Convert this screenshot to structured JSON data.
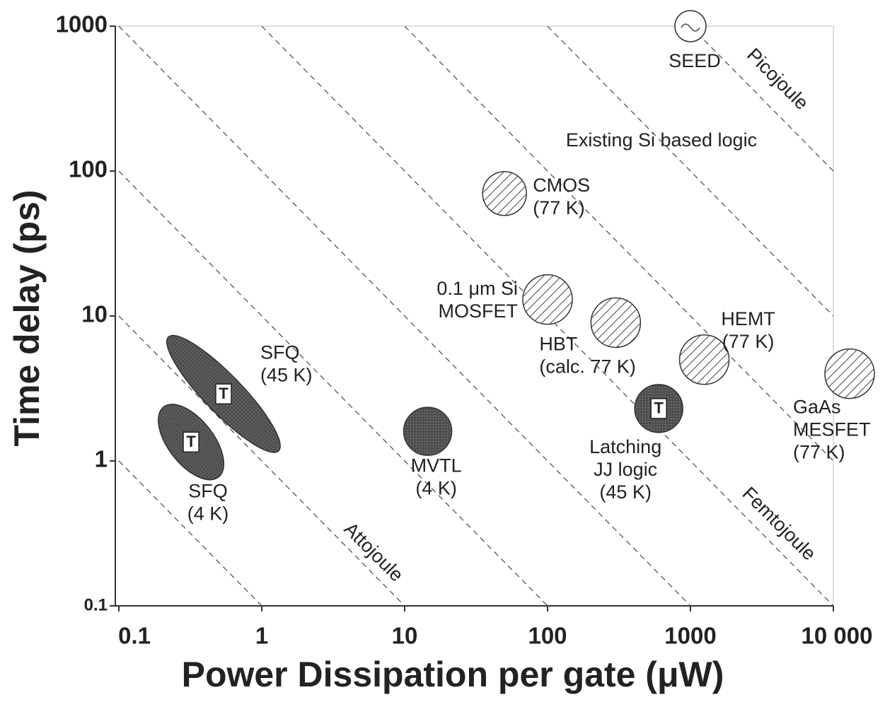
{
  "chart_data": {
    "type": "scatter",
    "xlabel": "Power Dissipation per gate (μW)",
    "ylabel": "Time delay (ps)",
    "log_x": true,
    "log_y": true,
    "xlim": [
      0.1,
      10000
    ],
    "ylim": [
      0.1,
      1000
    ],
    "xticks": [
      0.1,
      1,
      10,
      100,
      1000,
      {
        "value": 10000,
        "label": "10 000"
      }
    ],
    "yticks": [
      0.1,
      1,
      10,
      100,
      1000
    ],
    "annotation": "Existing Si based logic",
    "energy_lines": [
      0.01,
      0.1,
      1,
      10,
      100,
      1000,
      10000,
      100000,
      1000000
    ],
    "energy_labels": [
      {
        "value": 1,
        "label": "Attojoule"
      },
      {
        "value": 1000,
        "label": "Femtojoule"
      },
      {
        "value": 1000000,
        "label": "Picojoule"
      }
    ],
    "points": [
      {
        "label": [
          "SEED"
        ],
        "x": 1000,
        "y": 1000,
        "style": "open"
      },
      {
        "label": [
          "CMOS",
          "(77 K)"
        ],
        "x": 50,
        "y": 70,
        "style": "hatch"
      },
      {
        "label": [
          "0.1 μm Si",
          "MOSFET"
        ],
        "x": 100,
        "y": 13,
        "style": "hatch"
      },
      {
        "label": [
          "HBT",
          "(calc. 77 K)"
        ],
        "x": 300,
        "y": 9,
        "style": "hatch"
      },
      {
        "label": [
          "HEMT",
          "(77 K)"
        ],
        "x": 1250,
        "y": 5,
        "style": "hatch"
      },
      {
        "label": [
          "GaAs",
          "MESFET",
          "(77 K)"
        ],
        "x": 13000,
        "y": 4,
        "style": "hatch"
      },
      {
        "label": [
          "Latching",
          "JJ logic",
          "(45 K)"
        ],
        "x": 600,
        "y": 2.3,
        "style": "filled",
        "marker_text": "T"
      },
      {
        "label": [
          "MVTL",
          "(4 K)"
        ],
        "x": 14.5,
        "y": 1.6,
        "style": "filled"
      },
      {
        "label": [
          "SFQ",
          "(45 K)"
        ],
        "x": 0.54,
        "y": 2.9,
        "style": "filled",
        "marker_text": "T"
      },
      {
        "label": [
          "SFQ",
          "(4 K)"
        ],
        "x": 0.32,
        "y": 1.35,
        "style": "filled",
        "marker_text": "T"
      }
    ]
  }
}
